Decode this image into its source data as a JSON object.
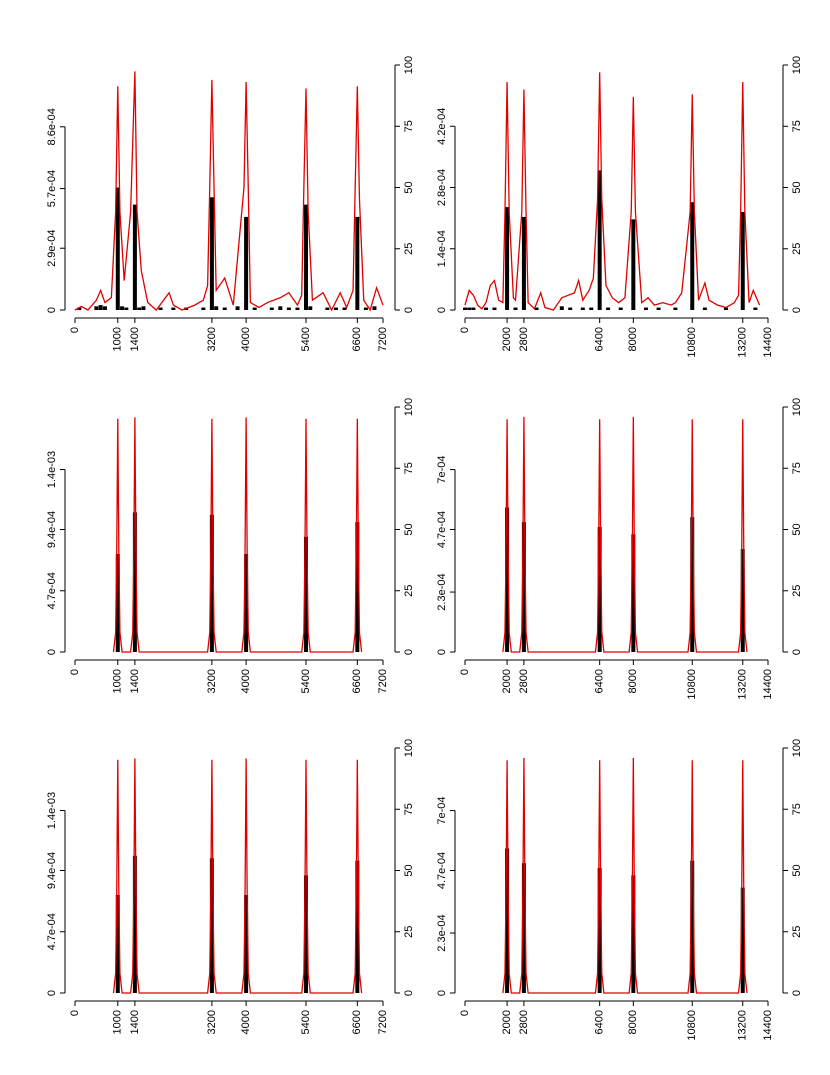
{
  "chart_data": [
    {
      "type": "combo",
      "xlim": [
        0,
        7200
      ],
      "xticks": [
        0,
        1000,
        1400,
        3200,
        4000,
        5400,
        6600,
        7200
      ],
      "ylim": [
        0,
        0.00115
      ],
      "yticks": [
        0,
        {
          "value": 0.00029,
          "label": "2.9e-04"
        },
        {
          "value": 0.00057,
          "label": "5.7e-04"
        },
        {
          "value": 0.00086,
          "label": "8.6e-04"
        }
      ],
      "y2lim": [
        0,
        100
      ],
      "y2ticks": [
        0,
        25,
        50,
        75,
        100
      ],
      "bars": {
        "color": "#000000",
        "axis": "y2",
        "x": [
          100,
          500,
          600,
          700,
          1000,
          1100,
          1200,
          1400,
          1500,
          1600,
          2000,
          2300,
          2600,
          3000,
          3200,
          3300,
          3500,
          3800,
          4000,
          4200,
          4600,
          4800,
          5000,
          5200,
          5400,
          5500,
          5900,
          6100,
          6300,
          6600,
          6800,
          7000
        ],
        "values": [
          1,
          1.5,
          2,
          1.5,
          50,
          1.5,
          1,
          43,
          1,
          1.5,
          1,
          1,
          1,
          1,
          46,
          1.5,
          1,
          1.5,
          38,
          1,
          1,
          1.5,
          1,
          1,
          43,
          1.5,
          1,
          1,
          1,
          38,
          1,
          1.5
        ]
      },
      "curve": {
        "color": "#e00000",
        "x": [
          0,
          150,
          300,
          500,
          600,
          700,
          850,
          950,
          1000,
          1050,
          1150,
          1300,
          1400,
          1450,
          1550,
          1700,
          1900,
          2200,
          2300,
          2500,
          2800,
          3000,
          3100,
          3150,
          3200,
          3250,
          3300,
          3500,
          3700,
          3950,
          4000,
          4050,
          4100,
          4300,
          4500,
          4800,
          5000,
          5200,
          5300,
          5350,
          5400,
          5450,
          5550,
          5800,
          6000,
          6200,
          6350,
          6500,
          6550,
          6600,
          6650,
          6750,
          6900,
          7050,
          7200
        ],
        "values": [
          0,
          1.7e-05,
          0,
          4.6e-05,
          9.2e-05,
          3.5e-05,
          5.8e-05,
          0.00046,
          0.00105,
          0.00046,
          0.000138,
          0.00046,
          0.00112,
          0.00046,
          0.000184,
          3.5e-05,
          0,
          8.1e-05,
          2.3e-05,
          0,
          2.3e-05,
          4.6e-05,
          0.000115,
          0.000575,
          0.00108,
          0.000575,
          9.2e-05,
          0.00015,
          2.3e-05,
          0.000575,
          0.00107,
          0.000575,
          3.5e-05,
          1.2e-05,
          3.5e-05,
          5.8e-05,
          8.1e-05,
          2.3e-05,
          6.9e-05,
          0.000575,
          0.00104,
          0.00046,
          4.6e-05,
          8.1e-05,
          0,
          8.1e-05,
          1.2e-05,
          9.2e-05,
          0.000575,
          0.00105,
          0.000518,
          4.6e-05,
          0,
          0.000104,
          2.3e-05
        ]
      }
    },
    {
      "type": "combo",
      "xlim": [
        0,
        14400
      ],
      "xticks": [
        0,
        2000,
        2800,
        6400,
        8000,
        10800,
        13200,
        14400
      ],
      "ylim": [
        0,
        0.00056
      ],
      "yticks": [
        0,
        {
          "value": 0.00014,
          "label": "1.4e-04"
        },
        {
          "value": 0.00028,
          "label": "2.8e-04"
        },
        {
          "value": 0.00042,
          "label": "4.2e-04"
        }
      ],
      "y2lim": [
        0,
        100
      ],
      "y2ticks": [
        0,
        25,
        50,
        75,
        100
      ],
      "bars": {
        "color": "#000000",
        "axis": "y2",
        "x": [
          0,
          200,
          400,
          1000,
          1400,
          2000,
          2400,
          2800,
          3400,
          4600,
          5000,
          5600,
          6000,
          6400,
          6800,
          7400,
          8000,
          8600,
          9200,
          10000,
          10800,
          11400,
          12400,
          13200,
          13800
        ],
        "values": [
          1,
          1,
          1,
          1,
          1,
          42,
          1,
          38,
          1,
          1.5,
          1,
          1,
          1,
          57,
          1,
          1,
          37,
          1,
          1,
          1,
          44,
          1,
          1,
          40,
          1
        ]
      },
      "curve": {
        "color": "#e00000",
        "x": [
          0,
          200,
          400,
          600,
          800,
          1000,
          1200,
          1400,
          1600,
          1800,
          1900,
          2000,
          2100,
          2300,
          2400,
          2700,
          2800,
          2900,
          3000,
          3300,
          3600,
          3800,
          4200,
          4600,
          4900,
          5200,
          5400,
          5600,
          5900,
          6100,
          6300,
          6400,
          6500,
          6700,
          7000,
          7300,
          7600,
          7900,
          8000,
          8100,
          8400,
          8700,
          9000,
          9400,
          9800,
          10000,
          10300,
          10700,
          10800,
          10900,
          11100,
          11400,
          11600,
          12000,
          12400,
          12800,
          13000,
          13100,
          13200,
          13300,
          13500,
          13700,
          14000
        ],
        "values": [
          1.12e-05,
          4.48e-05,
          3.36e-05,
          1.12e-05,
          2.8e-06,
          1.68e-05,
          5.6e-05,
          6.72e-05,
          2.24e-05,
          1.68e-05,
          0.000224,
          0.000521,
          0.000224,
          2.8e-05,
          2.24e-05,
          0.000224,
          0.000504,
          0.000224,
          1.68e-05,
          2.8e-06,
          3.92e-05,
          5.6e-06,
          0,
          2.8e-05,
          3.36e-05,
          3.92e-05,
          6.72e-05,
          2.24e-05,
          4.48e-05,
          7.28e-05,
          0.000252,
          0.000543,
          0.000252,
          5.6e-05,
          2.8e-05,
          1.68e-05,
          2.8e-05,
          0.000224,
          0.000487,
          0.000224,
          1.68e-05,
          2.8e-05,
          1.12e-05,
          1.68e-05,
          1.12e-05,
          1.68e-05,
          3.92e-05,
          0.000224,
          0.000493,
          0.000224,
          2.24e-05,
          6.16e-05,
          2.24e-05,
          1.12e-05,
          5.6e-06,
          1.68e-05,
          3.36e-05,
          0.000224,
          0.000521,
          0.000224,
          1.68e-05,
          4.48e-05,
          1.12e-05
        ]
      }
    },
    {
      "type": "combo",
      "xlim": [
        0,
        7200
      ],
      "xticks": [
        0,
        1000,
        1400,
        3200,
        4000,
        5400,
        6600,
        7200
      ],
      "ylim": [
        0,
        0.00188
      ],
      "yticks": [
        0,
        {
          "value": 0.00047,
          "label": "4.7e-04"
        },
        {
          "value": 0.00094,
          "label": "9.4e-04"
        },
        {
          "value": 0.0014,
          "label": "1.4e-03"
        }
      ],
      "y2lim": [
        0,
        100
      ],
      "y2ticks": [
        0,
        25,
        50,
        75,
        100
      ],
      "bars": {
        "color": "#000000",
        "axis": "y2",
        "x": [
          1000,
          1400,
          3200,
          4000,
          5400,
          6600
        ],
        "values": [
          40,
          57,
          56,
          40,
          47,
          53
        ]
      },
      "curve": {
        "color": "#e00000",
        "x": [
          900,
          950,
          975,
          1000,
          1025,
          1050,
          1100,
          1300,
          1350,
          1375,
          1400,
          1425,
          1450,
          1500,
          3100,
          3150,
          3175,
          3200,
          3225,
          3250,
          3300,
          3900,
          3950,
          3975,
          4000,
          4025,
          4050,
          4100,
          5300,
          5350,
          5375,
          5400,
          5425,
          5450,
          5500,
          6500,
          6550,
          6575,
          6600,
          6625,
          6650,
          6700
        ],
        "values": [
          0,
          0.00015,
          0.00075,
          0.00179,
          0.00075,
          0.00015,
          0,
          0,
          0.00015,
          0.00075,
          0.0018,
          0.00075,
          0.00015,
          0,
          0,
          0.00015,
          0.00075,
          0.00179,
          0.00075,
          0.00015,
          0,
          0,
          0.00015,
          0.00075,
          0.0018,
          0.00075,
          0.00015,
          0,
          0,
          0.00015,
          0.00075,
          0.00179,
          0.00075,
          0.00015,
          0,
          0,
          0.00015,
          0.00075,
          0.00179,
          0.00075,
          0.00015,
          0
        ]
      }
    },
    {
      "type": "combo",
      "xlim": [
        0,
        14400
      ],
      "xticks": [
        0,
        2000,
        2800,
        6400,
        8000,
        10800,
        13200,
        14400
      ],
      "ylim": [
        0,
        0.00094
      ],
      "yticks": [
        0,
        {
          "value": 0.00023,
          "label": "2.3e-04"
        },
        {
          "value": 0.00047,
          "label": "4.7e-04"
        },
        {
          "value": 0.0007,
          "label": "7e-04"
        }
      ],
      "y2lim": [
        0,
        100
      ],
      "y2ticks": [
        0,
        25,
        50,
        75,
        100
      ],
      "bars": {
        "color": "#000000",
        "axis": "y2",
        "x": [
          2000,
          2800,
          6400,
          8000,
          10800,
          13200
        ],
        "values": [
          59,
          53,
          51,
          48,
          55,
          42
        ]
      },
      "curve": {
        "color": "#e00000",
        "x": [
          1800,
          1900,
          1950,
          2000,
          2050,
          2100,
          2200,
          2600,
          2700,
          2750,
          2800,
          2850,
          2900,
          3000,
          6200,
          6300,
          6350,
          6400,
          6450,
          6500,
          6600,
          7800,
          7900,
          7950,
          8000,
          8050,
          8100,
          8200,
          10600,
          10700,
          10750,
          10800,
          10850,
          10900,
          11000,
          13000,
          13100,
          13150,
          13200,
          13250,
          13300,
          13400
        ],
        "values": [
          0,
          7.5e-05,
          0.000376,
          0.000893,
          0.000376,
          7.5e-05,
          0,
          0,
          7.5e-05,
          0.000376,
          0.000902,
          0.000376,
          7.5e-05,
          0,
          0,
          7.5e-05,
          0.000376,
          0.000893,
          0.000376,
          7.5e-05,
          0,
          0,
          7.5e-05,
          0.000376,
          0.000902,
          0.000376,
          7.5e-05,
          0,
          0,
          7.5e-05,
          0.000376,
          0.000893,
          0.000376,
          7.5e-05,
          0,
          0,
          7.5e-05,
          0.000376,
          0.000893,
          0.000376,
          7.5e-05,
          0
        ]
      }
    },
    {
      "type": "combo",
      "xlim": [
        0,
        7200
      ],
      "xticks": [
        0,
        1000,
        1400,
        3200,
        4000,
        5400,
        6600,
        7200
      ],
      "ylim": [
        0,
        0.00188
      ],
      "yticks": [
        0,
        {
          "value": 0.00047,
          "label": "4.7e-04"
        },
        {
          "value": 0.00094,
          "label": "9.4e-04"
        },
        {
          "value": 0.0014,
          "label": "1.4e-03"
        }
      ],
      "y2lim": [
        0,
        100
      ],
      "y2ticks": [
        0,
        25,
        50,
        75,
        100
      ],
      "bars": {
        "color": "#000000",
        "axis": "y2",
        "x": [
          1000,
          1400,
          3200,
          4000,
          5400,
          6600
        ],
        "values": [
          40,
          56,
          55,
          40,
          48,
          54
        ]
      },
      "curve": {
        "color": "#e00000",
        "x": [
          900,
          950,
          975,
          1000,
          1025,
          1050,
          1100,
          1300,
          1350,
          1375,
          1400,
          1425,
          1450,
          1500,
          3100,
          3150,
          3175,
          3200,
          3225,
          3250,
          3300,
          3900,
          3950,
          3975,
          4000,
          4025,
          4050,
          4100,
          5300,
          5350,
          5375,
          5400,
          5425,
          5450,
          5500,
          6500,
          6550,
          6575,
          6600,
          6625,
          6650,
          6700
        ],
        "values": [
          0,
          0.00015,
          0.00075,
          0.00179,
          0.00075,
          0.00015,
          0,
          0,
          0.00015,
          0.00075,
          0.0018,
          0.00075,
          0.00015,
          0,
          0,
          0.00015,
          0.00075,
          0.00179,
          0.00075,
          0.00015,
          0,
          0,
          0.00015,
          0.00075,
          0.0018,
          0.00075,
          0.00015,
          0,
          0,
          0.00015,
          0.00075,
          0.00179,
          0.00075,
          0.00015,
          0,
          0,
          0.00015,
          0.00075,
          0.00179,
          0.00075,
          0.00015,
          0
        ]
      }
    },
    {
      "type": "combo",
      "xlim": [
        0,
        14400
      ],
      "xticks": [
        0,
        2000,
        2800,
        6400,
        8000,
        10800,
        13200,
        14400
      ],
      "ylim": [
        0,
        0.00094
      ],
      "yticks": [
        0,
        {
          "value": 0.00023,
          "label": "2.3e-04"
        },
        {
          "value": 0.00047,
          "label": "4.7e-04"
        },
        {
          "value": 0.0007,
          "label": "7e-04"
        }
      ],
      "y2lim": [
        0,
        100
      ],
      "y2ticks": [
        0,
        25,
        50,
        75,
        100
      ],
      "bars": {
        "color": "#000000",
        "axis": "y2",
        "x": [
          2000,
          2800,
          6400,
          8000,
          10800,
          13200
        ],
        "values": [
          59,
          53,
          51,
          48,
          54,
          43
        ]
      },
      "curve": {
        "color": "#e00000",
        "x": [
          1800,
          1900,
          1950,
          2000,
          2050,
          2100,
          2200,
          2600,
          2700,
          2750,
          2800,
          2850,
          2900,
          3000,
          6200,
          6300,
          6350,
          6400,
          6450,
          6500,
          6600,
          7800,
          7900,
          7950,
          8000,
          8050,
          8100,
          8200,
          10600,
          10700,
          10750,
          10800,
          10850,
          10900,
          11000,
          13000,
          13100,
          13150,
          13200,
          13250,
          13300,
          13400
        ],
        "values": [
          0,
          7.5e-05,
          0.000376,
          0.000893,
          0.000376,
          7.5e-05,
          0,
          0,
          7.5e-05,
          0.000376,
          0.000902,
          0.000376,
          7.5e-05,
          0,
          0,
          7.5e-05,
          0.000376,
          0.000893,
          0.000376,
          7.5e-05,
          0,
          0,
          7.5e-05,
          0.000376,
          0.000902,
          0.000376,
          7.5e-05,
          0,
          0,
          7.5e-05,
          0.000376,
          0.000893,
          0.000376,
          7.5e-05,
          0,
          0,
          7.5e-05,
          0.000376,
          0.000893,
          0.000376,
          7.5e-05,
          0
        ]
      }
    }
  ]
}
